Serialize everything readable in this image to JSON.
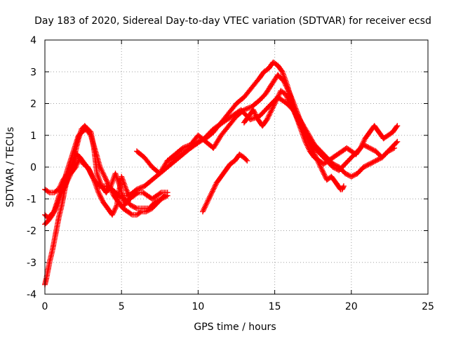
{
  "chart_data": {
    "type": "scatter",
    "title": "Day 183 of 2020, Sidereal Day-to-day VTEC variation (SDTVAR) for receiver ecsd",
    "xlabel": "GPS time / hours",
    "ylabel": "SDTVAR / TECUs",
    "xlim": [
      0,
      25
    ],
    "ylim": [
      -4,
      4
    ],
    "xticks": [
      0,
      5,
      10,
      15,
      20,
      25
    ],
    "yticks": [
      -4,
      -3,
      -2,
      -1,
      0,
      1,
      2,
      3,
      4
    ],
    "grid": true,
    "marker": "+",
    "series_color": "#ff0000",
    "series": [
      {
        "name": "track-1",
        "x": [
          0.0,
          0.1,
          0.3,
          0.5,
          0.7,
          0.9,
          1.1,
          1.3,
          1.5,
          1.7,
          1.9,
          2.1,
          2.3,
          2.5,
          2.8,
          3.2,
          3.6,
          4.0,
          4.4,
          4.8,
          5.2,
          5.6,
          6.0,
          6.4,
          6.8,
          7.2,
          7.6,
          8.0
        ],
        "y": [
          -3.7,
          -3.5,
          -3.0,
          -2.6,
          -2.1,
          -1.6,
          -1.2,
          -0.7,
          -0.3,
          -0.1,
          0.2,
          0.4,
          0.3,
          0.1,
          0.0,
          -0.4,
          -0.6,
          -0.6,
          -0.7,
          -0.9,
          -1.0,
          -1.2,
          -1.3,
          -1.3,
          -1.3,
          -1.1,
          -1.0,
          -0.9
        ]
      },
      {
        "name": "track-2",
        "x": [
          0.0,
          0.2,
          0.4,
          0.6,
          0.8,
          1.0,
          1.2,
          1.4,
          1.6,
          1.8,
          2.0,
          2.2,
          2.4,
          2.7,
          3.0,
          3.3,
          3.6,
          3.9,
          4.2,
          4.5,
          4.8,
          5.1,
          5.4,
          5.7,
          6.0,
          6.3,
          6.6,
          7.0,
          7.4,
          7.8
        ],
        "y": [
          -1.5,
          -1.6,
          -1.5,
          -1.4,
          -1.1,
          -0.8,
          -0.5,
          -0.2,
          0.1,
          0.4,
          0.7,
          1.0,
          1.1,
          1.2,
          1.0,
          0.5,
          0.0,
          -0.3,
          -0.6,
          -0.9,
          -1.1,
          -1.3,
          -1.4,
          -1.5,
          -1.5,
          -1.4,
          -1.4,
          -1.3,
          -1.1,
          -0.9
        ]
      },
      {
        "name": "track-3",
        "x": [
          0.0,
          0.3,
          0.6,
          0.9,
          1.2,
          1.5,
          1.8,
          2.0,
          2.2,
          2.4,
          2.6,
          2.8,
          3.0,
          3.2,
          3.4,
          3.7,
          4.0,
          4.3,
          4.6,
          4.9,
          5.2,
          5.5,
          5.8,
          6.1,
          6.4,
          6.7,
          7.0,
          7.3,
          7.6,
          8.0
        ],
        "y": [
          -0.7,
          -0.8,
          -0.8,
          -0.7,
          -0.4,
          -0.2,
          0.1,
          0.5,
          0.9,
          1.2,
          1.3,
          1.2,
          1.1,
          0.6,
          -0.2,
          -0.6,
          -0.8,
          -0.6,
          -0.2,
          -0.6,
          -1.2,
          -1.0,
          -0.9,
          -0.8,
          -0.8,
          -0.9,
          -1.0,
          -0.9,
          -0.8,
          -0.8
        ]
      },
      {
        "name": "track-4",
        "x": [
          0.0,
          0.2,
          0.5,
          0.8,
          1.1,
          1.4,
          1.7,
          2.0,
          2.3,
          2.6,
          2.9,
          3.2,
          3.5,
          3.8,
          4.1,
          4.4,
          4.7,
          5.0,
          5.3,
          5.6
        ],
        "y": [
          -1.8,
          -1.7,
          -1.5,
          -1.2,
          -0.8,
          -0.5,
          -0.2,
          0.0,
          0.3,
          0.1,
          -0.1,
          -0.4,
          -0.8,
          -1.1,
          -1.3,
          -1.5,
          -1.2,
          -0.3,
          -0.7,
          -1.0
        ]
      },
      {
        "name": "track-5",
        "x": [
          5.0,
          5.5,
          6.0,
          6.5,
          7.0,
          7.5,
          8.0,
          8.5,
          9.0,
          9.5,
          10.0,
          10.5,
          11.0,
          11.5,
          12.0,
          12.5,
          13.0,
          13.5,
          14.0,
          14.3,
          14.6,
          14.9,
          15.2,
          15.5,
          15.8,
          16.1,
          16.4,
          16.7,
          17.0,
          17.3,
          17.6,
          17.9,
          18.2,
          18.5,
          18.8,
          19.1,
          19.4,
          19.7,
          20.0,
          20.3,
          20.6,
          20.9,
          21.2,
          21.5,
          21.8,
          22.1,
          22.4,
          22.7,
          23.0
        ],
        "y": [
          -0.9,
          -0.9,
          -0.7,
          -0.6,
          -0.4,
          -0.2,
          0.0,
          0.2,
          0.4,
          0.6,
          0.8,
          0.9,
          1.1,
          1.4,
          1.7,
          2.0,
          2.2,
          2.5,
          2.8,
          3.0,
          3.1,
          3.3,
          3.2,
          3.0,
          2.6,
          2.1,
          1.6,
          1.2,
          0.8,
          0.5,
          0.3,
          0.2,
          0.1,
          0.2,
          0.3,
          0.4,
          0.5,
          0.6,
          0.5,
          0.4,
          0.6,
          0.9,
          1.1,
          1.3,
          1.1,
          0.9,
          1.0,
          1.1,
          1.3
        ]
      },
      {
        "name": "track-6",
        "x": [
          6.0,
          6.5,
          7.0,
          7.5,
          8.0,
          8.5,
          9.0,
          9.5,
          10.0,
          10.5,
          11.0,
          11.5,
          12.0,
          12.5,
          13.0,
          13.5,
          14.0,
          14.4,
          14.8,
          15.2,
          15.6,
          16.0,
          16.4,
          16.8,
          17.2,
          17.6,
          18.0,
          18.4,
          18.8,
          19.2,
          19.6,
          20.0,
          20.4,
          20.8,
          21.2,
          21.6,
          22.0,
          22.4,
          22.8
        ],
        "y": [
          0.5,
          0.3,
          0.0,
          -0.2,
          0.2,
          0.4,
          0.6,
          0.7,
          1.0,
          0.8,
          0.6,
          1.0,
          1.3,
          1.6,
          1.8,
          1.9,
          2.1,
          2.3,
          2.6,
          2.9,
          2.7,
          2.3,
          1.8,
          1.3,
          0.9,
          0.6,
          0.4,
          0.2,
          0.0,
          -0.1,
          0.1,
          0.3,
          0.5,
          0.7,
          0.6,
          0.5,
          0.3,
          0.5,
          0.6
        ]
      },
      {
        "name": "track-7",
        "x": [
          8.0,
          8.6,
          9.2,
          9.8,
          10.4,
          11.0,
          11.6,
          12.2,
          12.8,
          13.4,
          14.0,
          14.6,
          15.2,
          15.8,
          16.4,
          17.0,
          17.6,
          18.2,
          18.8,
          19.2,
          19.6,
          20.0,
          20.4,
          20.8,
          21.2,
          21.6,
          22.0,
          22.4,
          22.8,
          23.0
        ],
        "y": [
          0.2,
          0.3,
          0.5,
          0.7,
          0.9,
          1.2,
          1.4,
          1.6,
          1.8,
          1.5,
          1.6,
          1.9,
          2.2,
          2.0,
          1.7,
          1.2,
          0.7,
          0.4,
          0.1,
          0.0,
          -0.2,
          -0.3,
          -0.2,
          0.0,
          0.1,
          0.2,
          0.3,
          0.5,
          0.7,
          0.8
        ]
      },
      {
        "name": "track-8",
        "x": [
          13.0,
          13.3,
          13.6,
          13.9,
          14.2,
          14.5,
          14.8,
          15.1,
          15.4,
          15.7,
          16.0,
          16.3,
          16.6,
          16.9,
          17.2,
          17.5,
          17.8,
          18.1,
          18.4,
          18.7,
          19.0,
          19.3
        ],
        "y": [
          1.4,
          1.6,
          1.8,
          1.5,
          1.3,
          1.5,
          1.8,
          2.1,
          2.4,
          2.3,
          2.0,
          1.7,
          1.4,
          1.1,
          0.8,
          0.5,
          0.2,
          -0.1,
          -0.4,
          -0.3,
          -0.5,
          -0.7
        ]
      },
      {
        "name": "track-9",
        "x": [
          19.2,
          19.3,
          19.4,
          19.5
        ],
        "y": [
          -0.6,
          -0.7,
          -0.7,
          -0.6
        ]
      },
      {
        "name": "track-10",
        "x": [
          10.3,
          10.6,
          10.9,
          11.2,
          11.5,
          11.8,
          12.1,
          12.4,
          12.7,
          13.0,
          13.2
        ],
        "y": [
          -1.4,
          -1.1,
          -0.8,
          -0.5,
          -0.3,
          -0.1,
          0.1,
          0.2,
          0.4,
          0.3,
          0.2
        ]
      }
    ]
  }
}
